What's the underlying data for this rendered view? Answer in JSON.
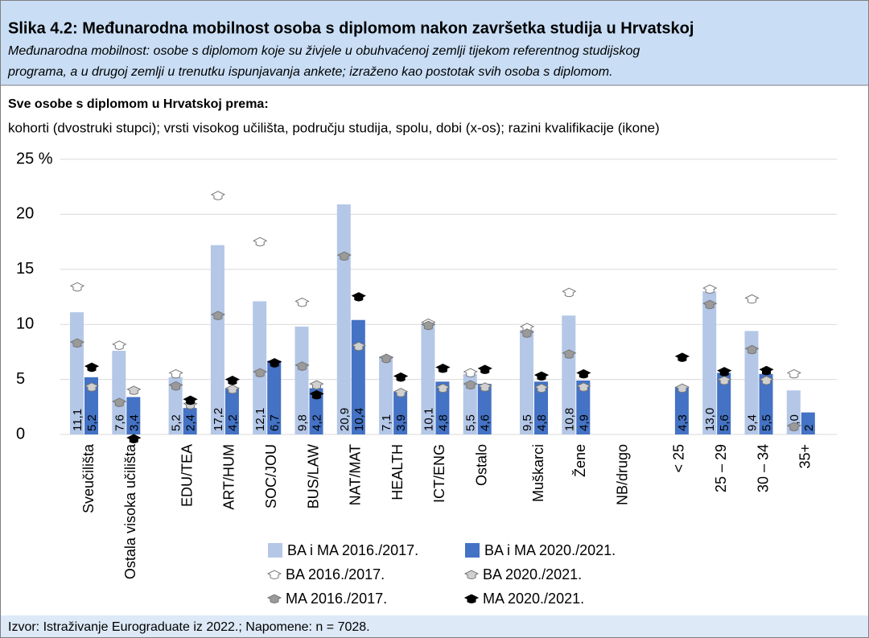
{
  "chart_data": {
    "type": "bar",
    "title": "Slika 4.2: Međunarodna mobilnost osoba s diplomom nakon završetka studija u Hrvatskoj",
    "subtitle": [
      "Međunarodna mobilnost: osobe s diplomom koje su živjele u obuhvaćenoj zemlji tijekom referentnog studijskog",
      "programa, a u drugoj zemlji u trenutku ispunjavanja ankete; izraženo kao postotak svih osoba s diplomom."
    ],
    "heading": "Sve osobe s diplomom u Hrvatskoj prema:",
    "description": "kohorti (dvostruki stupci); vrsti visokog učilišta, području studija, spolu, dobi (x-os); razini kvalifikacije (ikone)",
    "source": "Izvor: Istraživanje Eurograduate iz 2022.; Napomene: n = 7028.",
    "categories": [
      "Sveučilišta",
      "Ostala visoka učilišta",
      "EDU/TEA",
      "ART/HUM",
      "SOC/JOU",
      "BUS/LAW",
      "NAT/MAT",
      "HEALTH",
      "ICT/ENG",
      "Ostalo",
      "Muškarci",
      "Žene",
      "NB/drugo",
      "< 25",
      "25 – 29",
      "30 – 34",
      "35+"
    ],
    "ylim": [
      0,
      25
    ],
    "yticks": [
      0,
      5,
      10,
      15,
      20,
      {
        "value": 25,
        "label": "25 %"
      }
    ],
    "grid": true,
    "series": [
      {
        "name": "BA i MA 2016./2017.",
        "color": "#b4c7e7",
        "values": [
          11.1,
          7.6,
          5.2,
          17.2,
          12.1,
          9.8,
          20.9,
          7.1,
          10.1,
          5.5,
          9.5,
          10.8,
          null,
          null,
          13.0,
          9.4,
          4.0
        ],
        "value_labels": [
          "11,1",
          "7,6",
          "5,2",
          "17,2",
          "12,1",
          "9,8",
          "20,9",
          "7,1",
          "10,1",
          "5,5",
          "9,5",
          "10,8",
          null,
          null,
          "13,0",
          "9,4",
          "4,0"
        ]
      },
      {
        "name": "BA i MA 2020./2021.",
        "color": "#4472c4",
        "values": [
          5.2,
          3.4,
          2.4,
          4.2,
          6.7,
          4.2,
          10.4,
          3.9,
          4.8,
          4.6,
          4.8,
          4.9,
          null,
          4.3,
          5.6,
          5.5,
          2
        ],
        "value_labels": [
          "5,2",
          "3,4",
          "2,4",
          "4,2",
          "6,7",
          "4,2",
          "10,4",
          "3,9",
          "4,8",
          "4,6",
          "4,8",
          "4,9",
          null,
          "4,3",
          "5,6",
          "5,5",
          "2"
        ]
      }
    ],
    "icon_series": [
      {
        "name": "BA 2016./2017.",
        "color": "#ffffff",
        "values": [
          13.5,
          8.2,
          5.6,
          21.8,
          17.6,
          12.1,
          null,
          7.0,
          10.2,
          5.7,
          9.8,
          13.0,
          null,
          null,
          13.3,
          12.4,
          5.6
        ]
      },
      {
        "name": "BA 2020./2021.",
        "color": "#d0d0d0",
        "values": [
          4.4,
          4.1,
          2.8,
          4.2,
          6.6,
          4.6,
          8.1,
          3.9,
          4.3,
          4.4,
          4.3,
          4.4,
          null,
          4.3,
          5.0,
          5.0,
          null
        ]
      },
      {
        "name": "MA 2016./2017.",
        "color": "#9a9a9a",
        "values": [
          8.4,
          3.0,
          4.5,
          10.9,
          5.7,
          6.3,
          16.3,
          7.0,
          10.0,
          4.6,
          9.3,
          7.4,
          null,
          null,
          11.9,
          7.8,
          0.8
        ]
      },
      {
        "name": "MA 2020./2021.",
        "color": "#000000",
        "values": [
          6.2,
          -0.3,
          3.2,
          5.0,
          6.6,
          3.7,
          12.6,
          5.3,
          6.1,
          6.0,
          5.4,
          5.6,
          null,
          7.1,
          5.8,
          5.9,
          null
        ]
      }
    ]
  }
}
